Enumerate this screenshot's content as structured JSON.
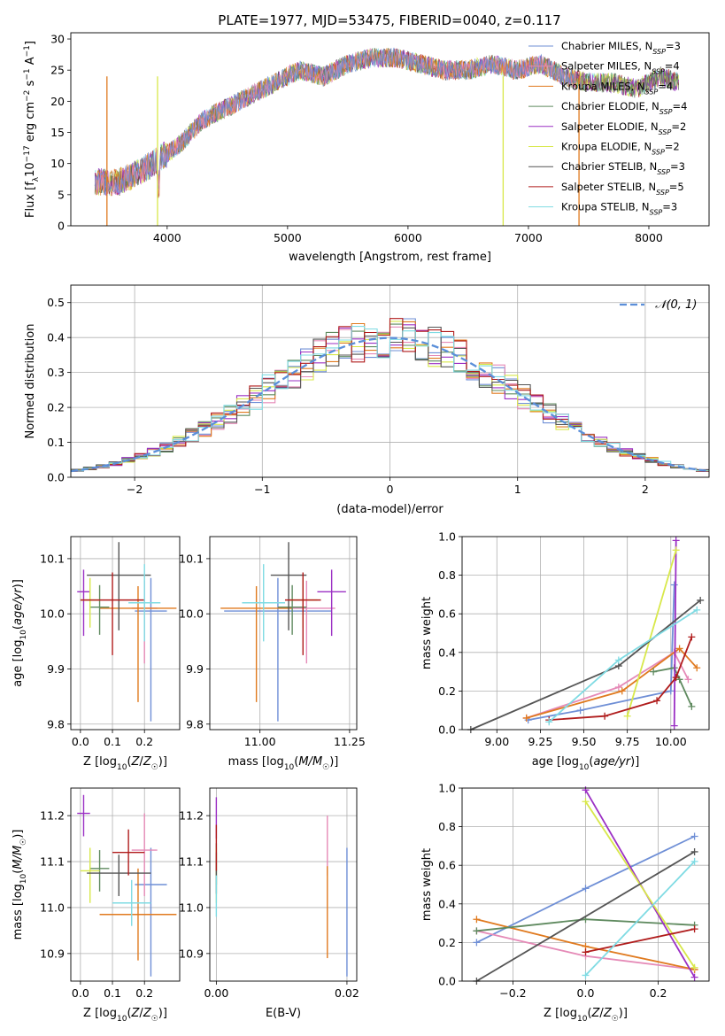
{
  "title": "PLATE=1977, MJD=53475, FIBERID=0040, z=0.117",
  "colors": {
    "Chabrier MILES": "#6f8fd6",
    "Salpeter MILES": "#e58ab7",
    "Kroupa MILES": "#e07a1f",
    "Chabrier ELODIE": "#5f8a5f",
    "Salpeter ELODIE": "#9b30c4",
    "Kroupa ELODIE": "#d8e84a",
    "Chabrier STELIB": "#555555",
    "Salpeter STELIB": "#b01c1c",
    "Kroupa STELIB": "#7fdbe3"
  },
  "chart_data": [
    {
      "panel": "spectrum",
      "type": "line",
      "title": "PLATE=1977, MJD=53475, FIBERID=0040, z=0.117",
      "xlabel": "wavelength [Angstrom, rest frame]",
      "ylabel": "Flux [f$_\\lambda$10$^{-17}$ erg cm$^{-2}$ s$^{-1}$ A$^{-1}$]",
      "xlim": [
        3200,
        8500
      ],
      "ylim": [
        0,
        31
      ],
      "xticks": [
        "4000",
        "5000",
        "6000",
        "7000",
        "8000"
      ],
      "yticks": [
        "0",
        "5",
        "10",
        "15",
        "20",
        "25",
        "30"
      ],
      "legend_position": "top-right",
      "legend": [
        {
          "base": "Chabrier MILES, N",
          "sub": "SSP",
          "tail": "=3"
        },
        {
          "base": "Salpeter MILES, N",
          "sub": "SSP",
          "tail": "=4"
        },
        {
          "base": "Kroupa MILES, N",
          "sub": "SSP",
          "tail": "=4"
        },
        {
          "base": "Chabrier ELODIE, N",
          "sub": "SSP",
          "tail": "=4"
        },
        {
          "base": "Salpeter ELODIE, N",
          "sub": "SSP",
          "tail": "=2"
        },
        {
          "base": "Kroupa ELODIE, N",
          "sub": "SSP",
          "tail": "=2"
        },
        {
          "base": "Chabrier STELIB, N",
          "sub": "SSP",
          "tail": "=3"
        },
        {
          "base": "Salpeter STELIB, N",
          "sub": "SSP",
          "tail": "=5"
        },
        {
          "base": "Kroupa STELIB, N",
          "sub": "SSP",
          "tail": "=3"
        }
      ],
      "continuum": {
        "x": [
          3400,
          3600,
          3800,
          3950,
          4100,
          4300,
          4500,
          4700,
          4900,
          5100,
          5300,
          5500,
          5700,
          5900,
          6100,
          6300,
          6500,
          6700,
          6900,
          7100,
          7300,
          7500,
          7700,
          7900,
          8100,
          8250
        ],
        "y": [
          7,
          7,
          9,
          11,
          13,
          17,
          19,
          21,
          23,
          25,
          24,
          26,
          27,
          27,
          26,
          25,
          25,
          26,
          25,
          26,
          24,
          23,
          23,
          22,
          24,
          23
        ]
      },
      "dropouts": [
        3500,
        3920,
        6790,
        7420
      ]
    },
    {
      "panel": "residual-histogram",
      "type": "line",
      "xlabel": "(data-model)/error",
      "ylabel": "Normed distribution",
      "xlim": [
        -2.5,
        2.5
      ],
      "ylim": [
        0,
        0.55
      ],
      "xticks": [
        "−2",
        "−1",
        "0",
        "1",
        "2"
      ],
      "yticks": [
        "0.0",
        "0.1",
        "0.2",
        "0.3",
        "0.4",
        "0.5"
      ],
      "legend": "𝒩(0, 1)",
      "legend_position": "top-right",
      "bin_width": 0.1
    },
    {
      "panel": "age-vs-Z",
      "type": "scatter",
      "xlabel": "Z [log10(Z/Z☉)]",
      "ylabel": "age [log10(age/yr)]",
      "xlim": [
        -0.03,
        0.31
      ],
      "ylim": [
        9.79,
        10.14
      ],
      "xticks": [
        "0.0",
        "0.1",
        "0.2"
      ],
      "yticks": [
        "9.8",
        "9.9",
        "10.0",
        "10.1"
      ],
      "points": [
        {
          "model": "Chabrier MILES",
          "x": 0.22,
          "xerr": 0.05,
          "y": 10.005,
          "yerr": [
            0.2,
            0.06
          ]
        },
        {
          "model": "Salpeter MILES",
          "x": 0.2,
          "xerr": 0.04,
          "y": 10.01,
          "yerr": [
            0.1,
            0.05
          ]
        },
        {
          "model": "Kroupa MILES",
          "x": 0.18,
          "xerr": 0.12,
          "y": 10.01,
          "yerr": [
            0.17,
            0.04
          ]
        },
        {
          "model": "Chabrier ELODIE",
          "x": 0.06,
          "xerr": 0.03,
          "y": 10.012,
          "yerr": [
            0.05,
            0.04
          ]
        },
        {
          "model": "Salpeter ELODIE",
          "x": 0.01,
          "xerr": 0.02,
          "y": 10.04,
          "yerr": [
            0.08,
            0.04
          ]
        },
        {
          "model": "Kroupa ELODIE",
          "x": 0.03,
          "xerr": 0.03,
          "y": 10.025,
          "yerr": [
            0.05,
            0.04
          ]
        },
        {
          "model": "Chabrier STELIB",
          "x": 0.12,
          "xerr": 0.1,
          "y": 10.07,
          "yerr": [
            0.1,
            0.06
          ]
        },
        {
          "model": "Salpeter STELIB",
          "x": 0.1,
          "xerr": 0.1,
          "y": 10.025,
          "yerr": [
            0.1,
            0.05
          ]
        },
        {
          "model": "Kroupa STELIB",
          "x": 0.2,
          "xerr": 0.05,
          "y": 10.02,
          "yerr": [
            0.07,
            0.07
          ]
        }
      ]
    },
    {
      "panel": "age-vs-mass",
      "type": "scatter",
      "xlabel": "mass [log10(M/M☉)]",
      "ylabel": "",
      "xlim": [
        10.86,
        11.27
      ],
      "ylim": [
        9.79,
        10.14
      ],
      "xticks": [
        "11.00",
        "11.25"
      ],
      "yticks": [
        "9.8",
        "9.9",
        "10.0",
        "10.1"
      ],
      "points": [
        {
          "model": "Chabrier MILES",
          "x": 11.05,
          "xerr": 0.15,
          "y": 10.005,
          "yerr": [
            0.2,
            0.06
          ]
        },
        {
          "model": "Salpeter MILES",
          "x": 11.13,
          "xerr": 0.08,
          "y": 10.01,
          "yerr": [
            0.1,
            0.05
          ]
        },
        {
          "model": "Kroupa MILES",
          "x": 10.99,
          "xerr": 0.1,
          "y": 10.01,
          "yerr": [
            0.17,
            0.04
          ]
        },
        {
          "model": "Chabrier ELODIE",
          "x": 11.09,
          "xerr": 0.04,
          "y": 10.012,
          "yerr": [
            0.05,
            0.04
          ]
        },
        {
          "model": "Salpeter ELODIE",
          "x": 11.2,
          "xerr": 0.04,
          "y": 10.04,
          "yerr": [
            0.08,
            0.04
          ]
        },
        {
          "model": "Kroupa ELODIE",
          "x": 11.12,
          "xerr": 0.04,
          "y": 10.025,
          "yerr": [
            0.05,
            0.04
          ]
        },
        {
          "model": "Chabrier STELIB",
          "x": 11.08,
          "xerr": 0.05,
          "y": 10.07,
          "yerr": [
            0.1,
            0.06
          ]
        },
        {
          "model": "Salpeter STELIB",
          "x": 11.12,
          "xerr": 0.05,
          "y": 10.025,
          "yerr": [
            0.1,
            0.05
          ]
        },
        {
          "model": "Kroupa STELIB",
          "x": 11.01,
          "xerr": 0.06,
          "y": 10.02,
          "yerr": [
            0.07,
            0.07
          ]
        }
      ]
    },
    {
      "panel": "weight-vs-age",
      "type": "line",
      "xlabel": "age [log10(age/yr)]",
      "ylabel": "mass weight",
      "xlim": [
        8.8,
        10.22
      ],
      "ylim": [
        0,
        1.0
      ],
      "xticks": [
        "9.00",
        "9.25",
        "9.50",
        "9.75",
        "10.00"
      ],
      "yticks": [
        "0.0",
        "0.2",
        "0.4",
        "0.6",
        "0.8",
        "1.0"
      ],
      "series": [
        {
          "model": "Chabrier MILES",
          "x": [
            9.18,
            9.48,
            10.0,
            10.02
          ],
          "y": [
            0.05,
            0.1,
            0.2,
            0.75
          ]
        },
        {
          "model": "Salpeter MILES",
          "x": [
            9.17,
            9.7,
            10.02,
            10.1
          ],
          "y": [
            0.06,
            0.22,
            0.4,
            0.26
          ]
        },
        {
          "model": "Kroupa MILES",
          "x": [
            9.17,
            9.72,
            10.05,
            10.15
          ],
          "y": [
            0.06,
            0.2,
            0.42,
            0.32
          ]
        },
        {
          "model": "Chabrier ELODIE",
          "x": [
            9.9,
            10.02,
            10.05,
            10.12
          ],
          "y": [
            0.3,
            0.32,
            0.26,
            0.12
          ]
        },
        {
          "model": "Salpeter ELODIE",
          "x": [
            10.02,
            10.03
          ],
          "y": [
            0.02,
            0.98
          ]
        },
        {
          "model": "Kroupa ELODIE",
          "x": [
            9.75,
            10.03
          ],
          "y": [
            0.07,
            0.93
          ]
        },
        {
          "model": "Chabrier STELIB",
          "x": [
            8.85,
            9.7,
            10.17
          ],
          "y": [
            0.0,
            0.33,
            0.67
          ]
        },
        {
          "model": "Salpeter STELIB",
          "x": [
            9.3,
            9.62,
            9.92,
            10.03,
            10.12
          ],
          "y": [
            0.05,
            0.07,
            0.15,
            0.27,
            0.48
          ]
        },
        {
          "model": "Kroupa STELIB",
          "x": [
            9.3,
            9.7,
            10.15
          ],
          "y": [
            0.04,
            0.36,
            0.62
          ]
        }
      ]
    },
    {
      "panel": "mass-vs-Z",
      "type": "scatter",
      "xlabel": "Z [log10(Z/Z☉)]",
      "ylabel": "mass [log10(M/M☉)]",
      "xlim": [
        -0.03,
        0.31
      ],
      "ylim": [
        10.84,
        11.26
      ],
      "xticks": [
        "0.0",
        "0.1",
        "0.2"
      ],
      "yticks": [
        "10.9",
        "11.0",
        "11.1",
        "11.2"
      ],
      "points": [
        {
          "model": "Chabrier MILES",
          "x": 0.22,
          "xerr": 0.05,
          "y": 11.05,
          "yerr": [
            0.2,
            0.08
          ]
        },
        {
          "model": "Salpeter MILES",
          "x": 0.2,
          "xerr": 0.04,
          "y": 11.125,
          "yerr": [
            0.1,
            0.08
          ]
        },
        {
          "model": "Kroupa MILES",
          "x": 0.18,
          "xerr": 0.12,
          "y": 10.985,
          "yerr": [
            0.1,
            0.1
          ]
        },
        {
          "model": "Chabrier ELODIE",
          "x": 0.06,
          "xerr": 0.03,
          "y": 11.085,
          "yerr": [
            0.05,
            0.04
          ]
        },
        {
          "model": "Salpeter ELODIE",
          "x": 0.01,
          "xerr": 0.02,
          "y": 11.205,
          "yerr": [
            0.05,
            0.04
          ]
        },
        {
          "model": "Kroupa ELODIE",
          "x": 0.03,
          "xerr": 0.03,
          "y": 11.08,
          "yerr": [
            0.07,
            0.05
          ]
        },
        {
          "model": "Chabrier STELIB",
          "x": 0.12,
          "xerr": 0.1,
          "y": 11.075,
          "yerr": [
            0.05,
            0.04
          ]
        },
        {
          "model": "Salpeter STELIB",
          "x": 0.15,
          "xerr": 0.05,
          "y": 11.12,
          "yerr": [
            0.05,
            0.05
          ]
        },
        {
          "model": "Kroupa STELIB",
          "x": 0.16,
          "xerr": 0.06,
          "y": 11.01,
          "yerr": [
            0.05,
            0.05
          ]
        }
      ]
    },
    {
      "panel": "mass-vs-EBV",
      "type": "scatter",
      "xlabel": "E(B-V)",
      "ylabel": "",
      "xlim": [
        -0.001,
        0.0215
      ],
      "ylim": [
        10.84,
        11.26
      ],
      "xticks": [
        "0.00",
        "0.02"
      ],
      "yticks": [
        "10.9",
        "11.0",
        "11.1",
        "11.2"
      ],
      "points": [
        {
          "model": "Chabrier MILES",
          "x": 0.02,
          "xerr": 0,
          "y": 11.0,
          "yerr": [
            0.15,
            0.13
          ]
        },
        {
          "model": "Salpeter MILES",
          "x": 0.017,
          "xerr": 0,
          "y": 11.12,
          "yerr": [
            0.05,
            0.08
          ]
        },
        {
          "model": "Kroupa MILES",
          "x": 0.017,
          "xerr": 0,
          "y": 10.99,
          "yerr": [
            0.1,
            0.1
          ]
        },
        {
          "model": "Chabrier ELODIE",
          "x": 0.0,
          "xerr": 0,
          "y": 11.1,
          "yerr": [
            0.05,
            0.04
          ]
        },
        {
          "model": "Salpeter ELODIE",
          "x": 0.0,
          "xerr": 0,
          "y": 11.2,
          "yerr": [
            0.05,
            0.04
          ]
        },
        {
          "model": "Kroupa ELODIE",
          "x": 0.0,
          "xerr": 0,
          "y": 11.08,
          "yerr": [
            0.07,
            0.05
          ]
        },
        {
          "model": "Chabrier STELIB",
          "x": 0.0,
          "xerr": 0,
          "y": 11.08,
          "yerr": [
            0.05,
            0.04
          ]
        },
        {
          "model": "Salpeter STELIB",
          "x": 0.0,
          "xerr": 0,
          "y": 11.13,
          "yerr": [
            0.05,
            0.05
          ]
        },
        {
          "model": "Kroupa STELIB",
          "x": 0.0,
          "xerr": 0,
          "y": 11.02,
          "yerr": [
            0.04,
            0.05
          ]
        }
      ]
    },
    {
      "panel": "weight-vs-Z",
      "type": "line",
      "xlabel": "Z [log10(Z/Z☉)]",
      "ylabel": "mass weight",
      "xlim": [
        -0.34,
        0.34
      ],
      "ylim": [
        0,
        1.0
      ],
      "xticks": [
        "−0.2",
        "0.0",
        "0.2"
      ],
      "yticks": [
        "0.0",
        "0.2",
        "0.4",
        "0.6",
        "0.8",
        "1.0"
      ],
      "series": [
        {
          "model": "Chabrier MILES",
          "x": [
            -0.3,
            0.0,
            0.3
          ],
          "y": [
            0.2,
            0.48,
            0.75
          ]
        },
        {
          "model": "Salpeter MILES",
          "x": [
            -0.3,
            0.0,
            0.3
          ],
          "y": [
            0.26,
            0.13,
            0.06
          ]
        },
        {
          "model": "Kroupa MILES",
          "x": [
            -0.3,
            0.0,
            0.3
          ],
          "y": [
            0.32,
            0.18,
            0.06
          ]
        },
        {
          "model": "Chabrier ELODIE",
          "x": [
            -0.3,
            0.0,
            0.3
          ],
          "y": [
            0.26,
            0.32,
            0.29
          ]
        },
        {
          "model": "Salpeter ELODIE",
          "x": [
            0.0,
            0.3
          ],
          "y": [
            0.99,
            0.02
          ]
        },
        {
          "model": "Kroupa ELODIE",
          "x": [
            0.0,
            0.3
          ],
          "y": [
            0.93,
            0.07
          ]
        },
        {
          "model": "Chabrier STELIB",
          "x": [
            -0.3,
            0.3
          ],
          "y": [
            0.0,
            0.67
          ]
        },
        {
          "model": "Salpeter STELIB",
          "x": [
            0.0,
            0.3
          ],
          "y": [
            0.15,
            0.27
          ]
        },
        {
          "model": "Kroupa STELIB",
          "x": [
            0.0,
            0.3
          ],
          "y": [
            0.03,
            0.62
          ]
        }
      ]
    }
  ]
}
